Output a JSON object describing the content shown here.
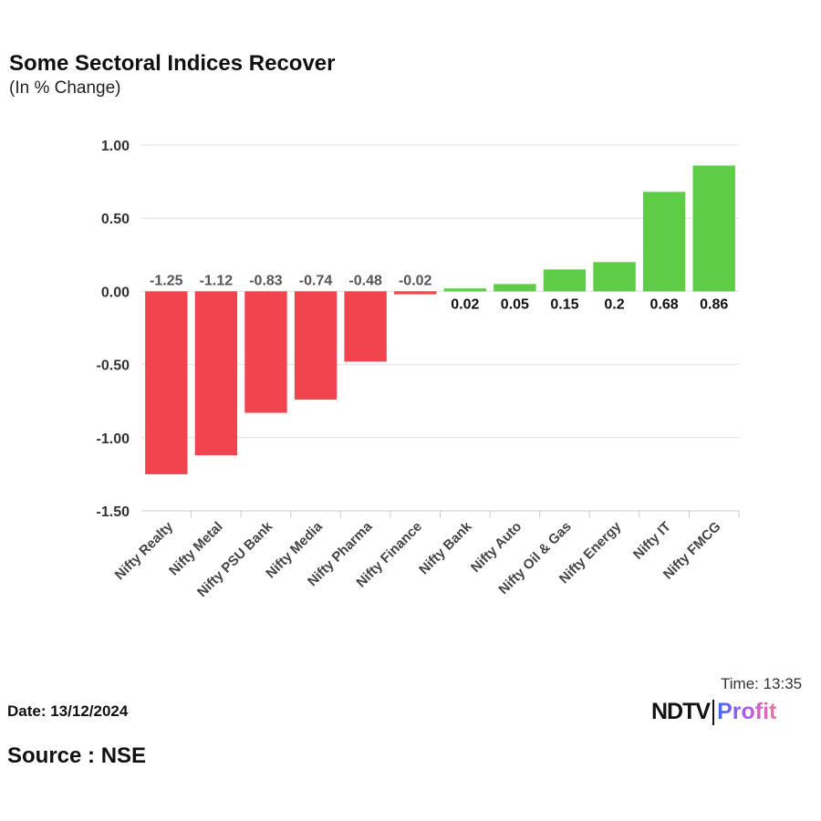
{
  "chart_data": {
    "type": "bar",
    "title": "Some Sectoral Indices Recover",
    "subtitle": "(In % Change)",
    "categories": [
      "Nifty Realty",
      "Nifty Metal",
      "Nifty PSU Bank",
      "Nifty Media",
      "Nifty Pharma",
      "Nifty Finance",
      "Nifty Bank",
      "Nifty Auto",
      "Nifty Oil & Gas",
      "Nifty Energy",
      "Nifty IT",
      "Nifty FMCG"
    ],
    "values": [
      -1.25,
      -1.12,
      -0.83,
      -0.74,
      -0.48,
      -0.02,
      0.02,
      0.05,
      0.15,
      0.2,
      0.68,
      0.86
    ],
    "data_labels": [
      "-1.25",
      "-1.12",
      "-0.83",
      "-0.74",
      "-0.48",
      "-0.02",
      "0.02",
      "0.05",
      "0.15",
      "0.2",
      "0.68",
      "0.86"
    ],
    "ylim": [
      -1.5,
      1.0
    ],
    "yticks": [
      "1.00",
      "0.50",
      "0.00",
      "-0.50",
      "-1.00",
      "-1.50"
    ],
    "ytick_values": [
      1,
      0.5,
      0,
      -0.5,
      -1,
      -1.5
    ],
    "grid": true,
    "colors": {
      "positive": "#5fcc47",
      "negative": "#f2444f"
    }
  },
  "footer": {
    "date": "Date: 13/12/2024",
    "time": "Time: 13:35",
    "source": "Source : NSE",
    "logo_ndtv": "NDTV",
    "logo_profit": "Profit"
  }
}
